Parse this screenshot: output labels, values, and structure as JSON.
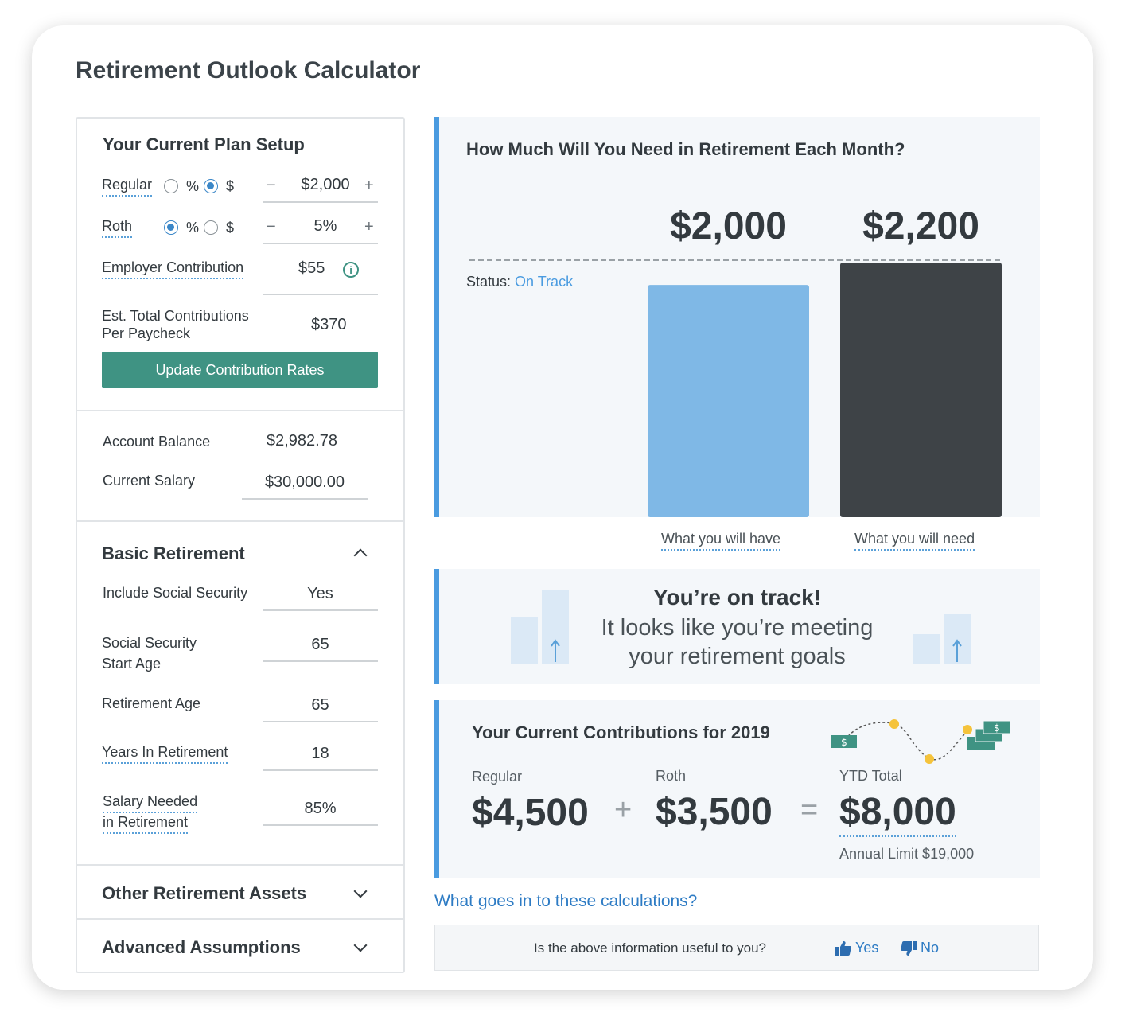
{
  "title": "Retirement Outlook Calculator",
  "plan_setup": {
    "title": "Your Current Plan Setup",
    "regular": {
      "label": "Regular",
      "opt_pct": "%",
      "opt_dollar": "$",
      "selected": "$",
      "value": "$2,000"
    },
    "roth": {
      "label": "Roth",
      "opt_pct": "%",
      "opt_dollar": "$",
      "selected": "%",
      "value": "5%"
    },
    "minus": "−",
    "plus": "+",
    "employer": {
      "label": "Employer Contribution",
      "value": "$55",
      "icon": "info-icon"
    },
    "total": {
      "label_line1": "Est. Total Contributions",
      "label_line2": "Per Paycheck",
      "value": "$370"
    },
    "update_button": "Update Contribution Rates"
  },
  "account": {
    "balance_label": "Account Balance",
    "balance_value": "$2,982.78",
    "salary_label": "Current Salary",
    "salary_value": "$30,000.00"
  },
  "basic_retirement": {
    "title": "Basic Retirement",
    "include_ss": {
      "label": "Include Social Security",
      "value": "Yes"
    },
    "ss_start_age": {
      "label_line1": "Social Security",
      "label_line2": "Start Age",
      "value": "65"
    },
    "retirement_age": {
      "label": "Retirement Age",
      "value": "65"
    },
    "years_in_retirement": {
      "label": "Years In Retirement",
      "value": "18"
    },
    "salary_needed": {
      "label_line1": "Salary Needed",
      "label_line2": "in Retirement",
      "value": "85%"
    }
  },
  "other_assets": {
    "title": "Other Retirement Assets"
  },
  "advanced": {
    "title": "Advanced Assumptions"
  },
  "chart": {
    "title": "How Much Will You Need in Retirement Each Month?",
    "status_label": "Status:",
    "status_value": "On Track"
  },
  "chart_data": {
    "type": "bar",
    "title": "How Much Will You Need in Retirement Each Month?",
    "categories": [
      "What you will have",
      "What you will need"
    ],
    "values": [
      2000,
      2200
    ],
    "value_labels": [
      "$2,000",
      "$2,200"
    ],
    "colors": [
      "#7fb8e6",
      "#3e4347"
    ],
    "ylim": [
      0,
      2200
    ],
    "grid": false
  },
  "on_track": {
    "title": "You’re on track!",
    "line1": "It looks like you’re meeting",
    "line2": "your retirement goals"
  },
  "contributions": {
    "title": "Your Current Contributions for 2019",
    "regular_label": "Regular",
    "regular_value": "$4,500",
    "plus": "+",
    "roth_label": "Roth",
    "roth_value": "$3,500",
    "equals": "=",
    "ytd_label": "YTD Total",
    "ytd_value": "$8,000",
    "annual_limit": "Annual Limit $19,000"
  },
  "calc_link": "What goes in to these calculations?",
  "feedback": {
    "question": "Is the above information useful to you?",
    "yes": "Yes",
    "no": "No"
  },
  "colors": {
    "accent_blue": "#4a9be0",
    "teal": "#3f9383",
    "link": "#2d7bc4"
  }
}
